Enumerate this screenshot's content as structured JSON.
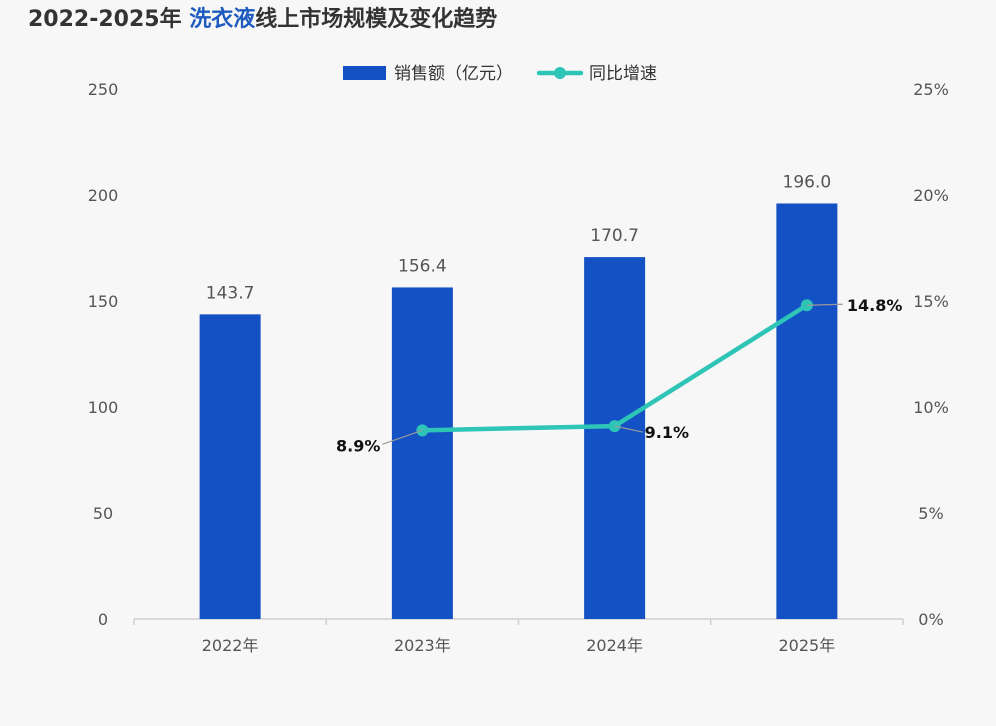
{
  "title": {
    "prefix": "2022-2025年 ",
    "highlight": "洗衣液",
    "suffix": "线上市场规模及变化趋势"
  },
  "colors": {
    "bar": "#1451c4",
    "line": "#2ec4b6",
    "axis_text": "#555555",
    "label_text": "#555555",
    "line_label_text": "#111111",
    "highlight": "#1f5bbf",
    "leader": "#999999",
    "axis_line": "#d0d0d0"
  },
  "chart_data": {
    "type": "bar",
    "title": "2022-2025年 洗衣液线上市场规模及变化趋势",
    "categories": [
      "2022年",
      "2023年",
      "2024年",
      "2025年"
    ],
    "series": [
      {
        "name": "销售额（亿元）",
        "type": "bar",
        "axis": "left",
        "values": [
          143.7,
          156.4,
          170.7,
          196.0
        ],
        "labels": [
          "143.7",
          "156.4",
          "170.7",
          "196.0"
        ]
      },
      {
        "name": "同比增速",
        "type": "line",
        "axis": "right",
        "values": [
          null,
          8.9,
          9.1,
          14.8
        ],
        "labels": [
          "",
          "8.9%",
          "9.1%",
          "14.8%"
        ]
      }
    ],
    "left_axis": {
      "min": 0,
      "max": 250,
      "ticks": [
        0,
        50,
        100,
        150,
        200,
        250
      ],
      "tick_labels": [
        "0",
        "50",
        "100",
        "150",
        "200",
        "250"
      ]
    },
    "right_axis": {
      "min": 0,
      "max": 25,
      "ticks": [
        0,
        5,
        10,
        15,
        20,
        25
      ],
      "tick_labels": [
        "0%",
        "5%",
        "10%",
        "15%",
        "20%",
        "25%"
      ]
    },
    "legend_position": "top-center",
    "grid": false
  }
}
